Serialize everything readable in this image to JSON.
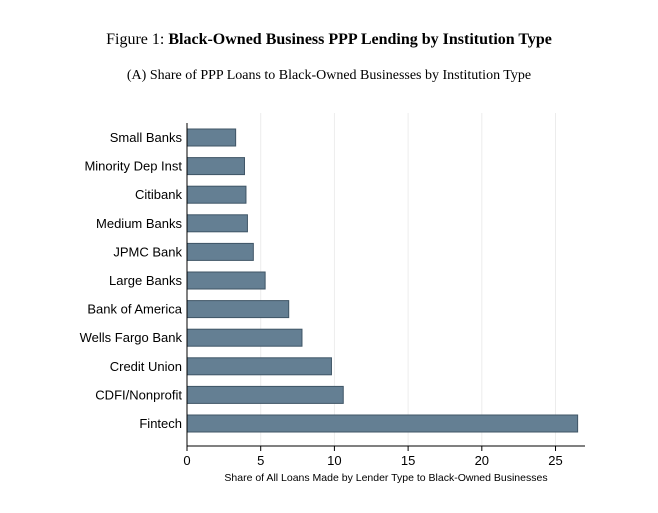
{
  "figure": {
    "prefix": "Figure 1:",
    "title": "Black-Owned Business PPP Lending by Institution Type",
    "subtitle": "(A) Share of PPP Loans to Black-Owned Businesses by Institution Type"
  },
  "chart_data": {
    "type": "bar",
    "orientation": "horizontal",
    "categories": [
      "Small Banks",
      "Minority Dep Inst",
      "Citibank",
      "Medium Banks",
      "JPMC Bank",
      "Large Banks",
      "Bank of America",
      "Wells Fargo Bank",
      "Credit Union",
      "CDFI/Nonprofit",
      "Fintech"
    ],
    "values": [
      3.3,
      3.9,
      4.0,
      4.1,
      4.5,
      5.3,
      6.9,
      7.8,
      9.8,
      10.6,
      26.5
    ],
    "xlabel": "Share of All Loans Made by Lender Type to Black-Owned Businesses",
    "xlim": [
      0,
      27
    ],
    "xticks": [
      0,
      5,
      10,
      15,
      20,
      25
    ],
    "grid": true,
    "bar_color": "#647f93",
    "bar_edge_color": "#3f5566"
  }
}
